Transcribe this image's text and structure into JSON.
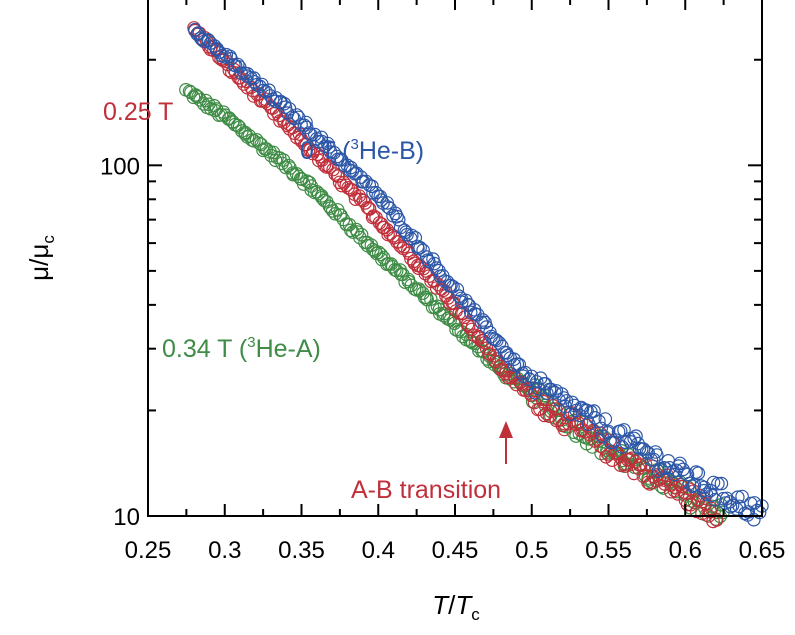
{
  "chart_data": {
    "type": "scatter",
    "xlabel": {
      "main": "T",
      "slash": "/",
      "sub_main": "T",
      "sub": "c"
    },
    "ylabel": {
      "main": "μ/μ",
      "sub": "c"
    },
    "xlim": [
      0.25,
      0.65
    ],
    "ylim": [
      10,
      300
    ],
    "ylog": true,
    "x_ticks": [
      "0.25",
      "0.3",
      "0.35",
      "0.4",
      "0.45",
      "0.5",
      "0.55",
      "0.6",
      "0.65"
    ],
    "x_tick_values": [
      0.25,
      0.3,
      0.35,
      0.4,
      0.45,
      0.5,
      0.55,
      0.6,
      0.65
    ],
    "y_ticks": [
      "10",
      "100"
    ],
    "y_tick_values": [
      10,
      100
    ],
    "grid": false,
    "marker": "open-circle",
    "series": [
      {
        "key": "b",
        "color": "#2c57a8",
        "label": {
          "pre": "0 T (",
          "sup": "3",
          "post": "He-B)"
        },
        "x_range": [
          0.28,
          0.65
        ],
        "anchors": [
          [
            0.28,
            245
          ],
          [
            0.3,
            205
          ],
          [
            0.35,
            133
          ],
          [
            0.4,
            82
          ],
          [
            0.45,
            44
          ],
          [
            0.5,
            24
          ],
          [
            0.55,
            17.5
          ],
          [
            0.6,
            13
          ],
          [
            0.65,
            10.1
          ]
        ]
      },
      {
        "key": "r",
        "color": "#c0303b",
        "label": {
          "pre": "0.25 T",
          "sup": "",
          "post": ""
        },
        "x_range": [
          0.28,
          0.62
        ],
        "anchors": [
          [
            0.28,
            245
          ],
          [
            0.3,
            196
          ],
          [
            0.35,
            118
          ],
          [
            0.4,
            70
          ],
          [
            0.45,
            40
          ],
          [
            0.48,
            26.5
          ],
          [
            0.5,
            22
          ],
          [
            0.55,
            15.5
          ],
          [
            0.6,
            11.5
          ],
          [
            0.62,
            10.1
          ]
        ]
      },
      {
        "key": "g",
        "color": "#3e8c45",
        "label": {
          "pre": "0.34 T (",
          "sup": "3",
          "post": "He-A)"
        },
        "x_range": [
          0.275,
          0.625
        ],
        "anchors": [
          [
            0.275,
            163
          ],
          [
            0.3,
            138
          ],
          [
            0.35,
            92
          ],
          [
            0.4,
            56
          ],
          [
            0.45,
            35
          ],
          [
            0.48,
            26
          ],
          [
            0.5,
            22.5
          ],
          [
            0.55,
            15.5
          ],
          [
            0.6,
            11.5
          ],
          [
            0.625,
            10.1
          ]
        ]
      }
    ],
    "annotation": {
      "text": "A-B transition",
      "color": "#c0303b",
      "x": 0.485,
      "y_tip": 25
    }
  }
}
